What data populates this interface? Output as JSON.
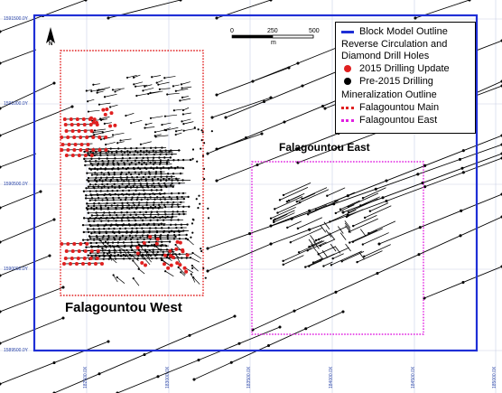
{
  "legend": {
    "block_model_outline": "Block Model Outline",
    "rc_dd_heading_line1": "Reverse Circulation and",
    "rc_dd_heading_line2": "Diamond Drill Holes",
    "drilling_2015": "2015 Drilling Update",
    "drilling_pre2015": "Pre-2015 Drilling",
    "mineralization_heading": "Mineralization Outline",
    "falagountou_main": "Falagountou Main",
    "falagountou_east": "Falagountou East"
  },
  "labels": {
    "falagountou_west": "Falagountou West",
    "falagountou_east": "Falagountou East",
    "north_arrow": "N"
  },
  "scale_bar": {
    "ticks": [
      "0",
      "250",
      "500"
    ],
    "unit": "m"
  },
  "coordinates": {
    "left": [
      "1591500.0Y",
      "1591000.0Y",
      "1590500.0Y",
      "1590000.0Y",
      "1589500.0Y"
    ],
    "bottom": [
      "182500.0X",
      "183000.0X",
      "183500.0X",
      "184000.0X",
      "184500.0X",
      "185000.0X"
    ]
  },
  "colors": {
    "block_model": "#1f2fd6",
    "drill_2015": "#e02020",
    "drill_pre2015": "#000000",
    "main_outline": "#e02020",
    "east_outline": "#e020e0",
    "grid": "#9aa6cc"
  }
}
